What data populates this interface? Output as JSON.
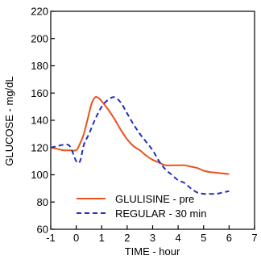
{
  "chart_data": {
    "type": "line",
    "title": "",
    "xlabel": "TIME - hour",
    "ylabel": "GLUCOSE - mg/dL",
    "xlim": [
      -1,
      7
    ],
    "ylim": [
      60,
      220
    ],
    "xticks": [
      -1,
      0,
      1,
      2,
      3,
      4,
      5,
      6,
      7
    ],
    "yticks": [
      60,
      80,
      100,
      120,
      140,
      160,
      180,
      200,
      220
    ],
    "grid": false,
    "legend_position": "bottom-center",
    "series": [
      {
        "name": "GLULISINE - pre",
        "color": "#e8531f",
        "style": "solid",
        "x": [
          -1,
          -0.75,
          -0.5,
          -0.25,
          0,
          0.15,
          0.3,
          0.45,
          0.6,
          0.75,
          0.9,
          1.0,
          1.25,
          1.5,
          1.75,
          2.0,
          2.25,
          2.5,
          2.75,
          3.0,
          3.25,
          3.5,
          3.75,
          4.0,
          4.25,
          4.5,
          4.75,
          5.0,
          5.25,
          5.5,
          6.0
        ],
        "y": [
          120,
          119,
          118,
          118,
          118,
          123,
          130,
          141,
          152,
          157,
          156,
          154,
          148,
          141,
          133,
          126,
          121,
          118,
          114,
          111,
          109,
          107,
          107,
          107,
          107,
          106,
          105,
          103,
          102,
          101.5,
          100.5
        ]
      },
      {
        "name": "REGULAR - 30 min",
        "color": "#1f2fbf",
        "style": "dashed",
        "x": [
          -1,
          -0.75,
          -0.5,
          -0.25,
          0,
          0.15,
          0.3,
          0.5,
          0.75,
          1.0,
          1.25,
          1.5,
          1.75,
          2.0,
          2.25,
          2.5,
          2.75,
          3.0,
          3.25,
          3.5,
          3.75,
          4.0,
          4.25,
          4.5,
          4.75,
          5.0,
          5.25,
          5.5,
          5.75,
          6.0
        ],
        "y": [
          120,
          121,
          122,
          121,
          110,
          110,
          122,
          130,
          141,
          150,
          155,
          157,
          153,
          145,
          137,
          130,
          124,
          118,
          110,
          104,
          100,
          96,
          94,
          90,
          87,
          86,
          86,
          86,
          87,
          88
        ]
      }
    ]
  }
}
